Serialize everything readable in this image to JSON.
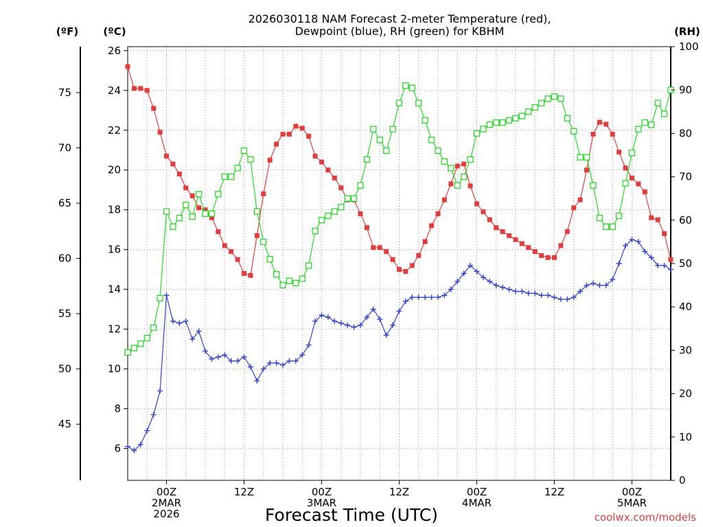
{
  "chart_data": {
    "type": "line",
    "title_lines": [
      "2026030118 NAM Forecast 2-meter Temperature (red),",
      "Dewpoint (blue), RH (green) for KBHM"
    ],
    "xlabel": "Forecast Time (UTC)",
    "credit": "coolwx.com/models",
    "units": {
      "left_f": "(ºF)",
      "left_c": "(ºC)",
      "right_rh": "(RH)"
    },
    "x_unit": "forecast hour",
    "xlim": [
      -6,
      78
    ],
    "ylim_c": [
      4.4,
      26.2
    ],
    "ylim_rh": [
      0,
      100
    ],
    "c_ticks": [
      6,
      8,
      10,
      12,
      14,
      16,
      18,
      20,
      22,
      24,
      26
    ],
    "f_ticks": [
      45,
      50,
      55,
      60,
      65,
      70,
      75
    ],
    "rh_ticks": [
      0,
      10,
      20,
      30,
      40,
      50,
      60,
      70,
      80,
      90,
      100
    ],
    "x_ticks": [
      {
        "hour": 0,
        "lines": [
          "00Z",
          "2MAR",
          "2026"
        ]
      },
      {
        "hour": 12,
        "lines": [
          "12Z"
        ]
      },
      {
        "hour": 24,
        "lines": [
          "00Z",
          "3MAR"
        ]
      },
      {
        "hour": 36,
        "lines": [
          "12Z"
        ]
      },
      {
        "hour": 48,
        "lines": [
          "00Z",
          "4MAR"
        ]
      },
      {
        "hour": 60,
        "lines": [
          "12Z"
        ]
      },
      {
        "hour": 72,
        "lines": [
          "00Z",
          "5MAR"
        ]
      }
    ],
    "x": [
      -6,
      -5,
      -4,
      -3,
      -2,
      -1,
      0,
      1,
      2,
      3,
      4,
      5,
      6,
      7,
      8,
      9,
      10,
      11,
      12,
      13,
      14,
      15,
      16,
      17,
      18,
      19,
      20,
      21,
      22,
      23,
      24,
      25,
      26,
      27,
      28,
      29,
      30,
      31,
      32,
      33,
      34,
      35,
      36,
      37,
      38,
      39,
      40,
      41,
      42,
      43,
      44,
      45,
      46,
      47,
      48,
      49,
      50,
      51,
      52,
      53,
      54,
      55,
      56,
      57,
      58,
      59,
      60,
      61,
      62,
      63,
      64,
      65,
      66,
      67,
      68,
      69,
      70,
      71,
      72,
      73,
      74,
      75,
      76,
      77,
      78
    ],
    "series": [
      {
        "name": "Temperature",
        "unit": "C",
        "color": "#e83a3a",
        "marker": "filled-square",
        "values": [
          25.2,
          24.1,
          24.1,
          24.0,
          23.1,
          21.9,
          20.7,
          20.3,
          19.8,
          19.1,
          18.7,
          18.1,
          18.0,
          17.6,
          16.9,
          16.2,
          15.9,
          15.5,
          14.8,
          14.7,
          16.7,
          18.8,
          20.5,
          21.3,
          21.8,
          21.8,
          22.2,
          22.1,
          21.7,
          20.7,
          20.4,
          20.0,
          19.6,
          19.1,
          18.5,
          18.5,
          17.8,
          17.1,
          16.1,
          16.1,
          15.9,
          15.5,
          15.0,
          14.9,
          15.2,
          15.7,
          16.4,
          17.2,
          17.8,
          18.5,
          19.3,
          20.2,
          20.3,
          19.2,
          18.3,
          17.9,
          17.5,
          17.1,
          16.9,
          16.7,
          16.5,
          16.3,
          16.1,
          15.9,
          15.7,
          15.6,
          15.6,
          16.2,
          16.9,
          18.1,
          18.5,
          20.0,
          21.8,
          22.4,
          22.3,
          21.8,
          20.9,
          20.1,
          19.6,
          19.3,
          18.9,
          17.6,
          17.5,
          16.8,
          15.5
        ]
      },
      {
        "name": "Dewpoint",
        "unit": "C",
        "color": "#2a3fe0",
        "marker": "plus",
        "values": [
          6.1,
          5.9,
          6.2,
          6.9,
          7.7,
          8.9,
          13.7,
          12.4,
          12.3,
          12.4,
          11.5,
          11.9,
          10.9,
          10.5,
          10.6,
          10.7,
          10.4,
          10.4,
          10.6,
          10.1,
          9.4,
          10.0,
          10.3,
          10.3,
          10.2,
          10.4,
          10.4,
          10.7,
          11.2,
          12.4,
          12.7,
          12.6,
          12.4,
          12.3,
          12.2,
          12.1,
          12.2,
          12.6,
          13.0,
          12.5,
          11.7,
          12.2,
          12.9,
          13.4,
          13.6,
          13.6,
          13.6,
          13.6,
          13.6,
          13.7,
          14.0,
          14.4,
          14.8,
          15.2,
          14.9,
          14.6,
          14.4,
          14.2,
          14.1,
          14.0,
          13.9,
          13.9,
          13.8,
          13.8,
          13.7,
          13.7,
          13.6,
          13.5,
          13.5,
          13.6,
          13.9,
          14.2,
          14.3,
          14.2,
          14.2,
          14.5,
          15.3,
          16.2,
          16.5,
          16.4,
          15.9,
          15.6,
          15.2,
          15.2,
          15.0
        ]
      },
      {
        "name": "RH",
        "unit": "%",
        "color": "#20dd20",
        "marker": "open-square",
        "values": [
          29.5,
          30.5,
          31.5,
          32.8,
          35.2,
          42,
          62,
          58.5,
          60.5,
          63.5,
          60.8,
          66,
          61.5,
          61.5,
          66,
          70,
          70,
          72,
          76,
          74,
          62,
          55,
          51,
          47.5,
          45,
          46,
          45.5,
          46.5,
          49.5,
          57.5,
          60,
          61,
          62,
          63,
          65,
          65,
          68,
          74,
          81,
          78.5,
          76,
          81,
          87,
          91,
          90.5,
          87,
          83,
          78.5,
          76,
          73.5,
          72,
          68,
          70,
          74,
          80,
          81,
          82,
          82.5,
          82.5,
          83,
          83.5,
          84,
          85,
          86,
          87,
          88,
          88.5,
          88,
          83.5,
          80.5,
          74.5,
          74.5,
          68,
          60.5,
          58.5,
          58.5,
          61,
          68.5,
          75.5,
          81,
          82.5,
          82,
          87,
          84.5,
          90
        ]
      }
    ]
  }
}
